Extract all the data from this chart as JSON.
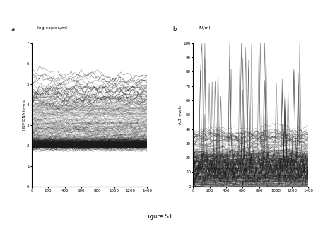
{
  "panel_a": {
    "label": "a",
    "subtitle": "log copies/ml",
    "ylabel": "HBV DNA levels",
    "xlim": [
      0,
      1400
    ],
    "ylim": [
      0,
      7
    ],
    "yticks": [
      0,
      1,
      2,
      3,
      4,
      5,
      6,
      7
    ],
    "xticks": [
      0,
      200,
      400,
      600,
      800,
      1000,
      1200,
      1400
    ]
  },
  "panel_b": {
    "label": "b",
    "subtitle": "IU/ml",
    "ylabel": "ALT levels",
    "xlim": [
      0,
      1400
    ],
    "ylim": [
      0,
      100
    ],
    "yticks": [
      0,
      10,
      20,
      30,
      40,
      50,
      60,
      70,
      80,
      90,
      100
    ],
    "xticks": [
      0,
      200,
      400,
      600,
      800,
      1000,
      1200,
      1400
    ]
  },
  "figure_caption": "Figure S1",
  "line_color": "#1a1a1a",
  "line_alpha": 0.25,
  "line_width": 0.3,
  "bg_color": "#ffffff",
  "seed": 42,
  "n_points": 80,
  "x_max": 1400,
  "hbv_n_bulk": 300,
  "hbv_n_high": 20,
  "alt_n_bulk": 300,
  "alt_n_high": 25
}
